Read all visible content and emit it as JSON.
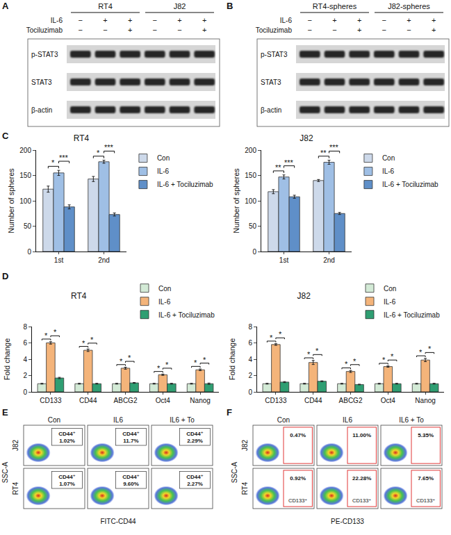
{
  "panel_labels": [
    "A",
    "B",
    "C",
    "D",
    "E",
    "F"
  ],
  "blots": [
    {
      "groups": [
        "RT4",
        "J82"
      ],
      "treatments": [
        {
          "name": "IL-6",
          "signs": [
            "−",
            "+",
            "+",
            "−",
            "+",
            "+"
          ]
        },
        {
          "name": "Tociluzimab",
          "signs": [
            "−",
            "−",
            "+",
            "−",
            "−",
            "+"
          ]
        }
      ],
      "bands": [
        "p-STAT3",
        "STAT3",
        "β-actin"
      ]
    },
    {
      "groups": [
        "RT4-spheres",
        "J82-spheres"
      ],
      "treatments": [
        {
          "name": "IL-6",
          "signs": [
            "−",
            "+",
            "+",
            "−",
            "+",
            "+"
          ]
        },
        {
          "name": "Tociluzimab",
          "signs": [
            "−",
            "−",
            "+",
            "−",
            "−",
            "+"
          ]
        }
      ],
      "bands": [
        "p-STAT3",
        "STAT3",
        "β-actin"
      ]
    }
  ],
  "chart_data": [
    {
      "type": "bar",
      "title": "RT4",
      "y_label": "Number of spheres",
      "categories": [
        "1st",
        "2nd"
      ],
      "ylim": [
        0,
        200
      ],
      "yticks": [
        0,
        50,
        100,
        150,
        200
      ],
      "grid": false,
      "legend": "right",
      "series": [
        {
          "name": "Con",
          "color": "#cdd9ea",
          "values": [
            123,
            143
          ],
          "errors": [
            6,
            5
          ]
        },
        {
          "name": "IL-6",
          "color": "#9fbfe5",
          "values": [
            155,
            177
          ],
          "errors": [
            5,
            3
          ]
        },
        {
          "name": "IL-6 + Tociluzimab",
          "color": "#5f8fc8",
          "values": [
            88,
            73
          ],
          "errors": [
            4,
            3
          ]
        }
      ],
      "annotations": [
        {
          "category": "1st",
          "between": [
            "Con",
            "IL-6"
          ],
          "text": "*"
        },
        {
          "category": "1st",
          "between": [
            "IL-6",
            "IL-6 + Tociluzimab"
          ],
          "text": "***"
        },
        {
          "category": "2nd",
          "between": [
            "Con",
            "IL-6"
          ],
          "text": "*"
        },
        {
          "category": "2nd",
          "between": [
            "IL-6",
            "IL-6 + Tociluzimab"
          ],
          "text": "***"
        }
      ]
    },
    {
      "type": "bar",
      "title": "J82",
      "y_label": "Number of spheres",
      "categories": [
        "1st",
        "2nd"
      ],
      "ylim": [
        0,
        200
      ],
      "yticks": [
        0,
        50,
        100,
        150,
        200
      ],
      "grid": false,
      "legend": "right",
      "series": [
        {
          "name": "Con",
          "color": "#cdd9ea",
          "values": [
            118,
            140
          ],
          "errors": [
            4,
            2
          ]
        },
        {
          "name": "IL-6",
          "color": "#9fbfe5",
          "values": [
            147,
            176
          ],
          "errors": [
            4,
            4
          ]
        },
        {
          "name": "IL-6 + Tociluzimab",
          "color": "#5f8fc8",
          "values": [
            108,
            75
          ],
          "errors": [
            3,
            2
          ]
        }
      ],
      "annotations": [
        {
          "category": "1st",
          "between": [
            "Con",
            "IL-6"
          ],
          "text": "**"
        },
        {
          "category": "1st",
          "between": [
            "IL-6",
            "IL-6 + Tociluzimab"
          ],
          "text": "***"
        },
        {
          "category": "2nd",
          "between": [
            "Con",
            "IL-6"
          ],
          "text": "**"
        },
        {
          "category": "2nd",
          "between": [
            "IL-6",
            "IL-6 + Tociluzimab"
          ],
          "text": "***"
        }
      ]
    },
    {
      "type": "bar",
      "title": "RT4",
      "y_label": "Fold change",
      "categories": [
        "CD133",
        "CD44",
        "ABCG2",
        "Oct4",
        "Nanog"
      ],
      "ylim": [
        0,
        8
      ],
      "yticks": [
        0,
        2,
        4,
        6,
        8
      ],
      "grid": false,
      "legend": "top right",
      "series": [
        {
          "name": "Con",
          "color": "#d3ead6",
          "values": [
            1.0,
            1.0,
            1.0,
            1.0,
            1.0
          ],
          "errors": [
            0.05,
            0.05,
            0.05,
            0.05,
            0.05
          ]
        },
        {
          "name": "IL-6",
          "color": "#f4b47a",
          "values": [
            6.0,
            5.1,
            2.9,
            2.1,
            2.7
          ],
          "errors": [
            0.15,
            0.15,
            0.12,
            0.08,
            0.1
          ]
        },
        {
          "name": "IL-6 + Tociluzimab",
          "color": "#2f9e72",
          "values": [
            1.7,
            1.0,
            1.1,
            1.0,
            1.0
          ],
          "errors": [
            0.08,
            0.05,
            0.05,
            0.05,
            0.08
          ]
        }
      ],
      "annotations": [
        {
          "category": "CD133",
          "between": [
            "Con",
            "IL-6"
          ],
          "text": "*"
        },
        {
          "category": "CD133",
          "between": [
            "IL-6",
            "IL-6 + Tociluzimab"
          ],
          "text": "*"
        },
        {
          "category": "CD44",
          "between": [
            "Con",
            "IL-6"
          ],
          "text": "*"
        },
        {
          "category": "CD44",
          "between": [
            "IL-6",
            "IL-6 + Tociluzimab"
          ],
          "text": "*"
        },
        {
          "category": "ABCG2",
          "between": [
            "Con",
            "IL-6"
          ],
          "text": "*"
        },
        {
          "category": "ABCG2",
          "between": [
            "IL-6",
            "IL-6 + Tociluzimab"
          ],
          "text": "*"
        },
        {
          "category": "Oct4",
          "between": [
            "Con",
            "IL-6"
          ],
          "text": "*"
        },
        {
          "category": "Oct4",
          "between": [
            "IL-6",
            "IL-6 + Tociluzimab"
          ],
          "text": "*"
        },
        {
          "category": "Nanog",
          "between": [
            "Con",
            "IL-6"
          ],
          "text": "*"
        },
        {
          "category": "Nanog",
          "between": [
            "IL-6",
            "IL-6 + Tociluzimab"
          ],
          "text": "*"
        }
      ]
    },
    {
      "type": "bar",
      "title": "J82",
      "y_label": "Fold change",
      "categories": [
        "CD133",
        "CD44",
        "ABCG2",
        "Oct4",
        "Nanog"
      ],
      "ylim": [
        0,
        8
      ],
      "yticks": [
        0,
        2,
        4,
        6,
        8
      ],
      "grid": false,
      "legend": "top right",
      "series": [
        {
          "name": "Con",
          "color": "#d3ead6",
          "values": [
            1.0,
            1.0,
            1.0,
            1.0,
            1.0
          ],
          "errors": [
            0.05,
            0.05,
            0.05,
            0.05,
            0.05
          ]
        },
        {
          "name": "IL-6",
          "color": "#f4b47a",
          "values": [
            5.8,
            3.6,
            2.5,
            3.1,
            3.9
          ],
          "errors": [
            0.1,
            0.25,
            0.12,
            0.08,
            0.2
          ]
        },
        {
          "name": "IL-6 + Tociluzimab",
          "color": "#2f9e72",
          "values": [
            1.2,
            1.3,
            0.9,
            1.0,
            1.0
          ],
          "errors": [
            0.06,
            0.05,
            0.04,
            0.05,
            0.05
          ]
        }
      ],
      "annotations": [
        {
          "category": "CD133",
          "between": [
            "Con",
            "IL-6"
          ],
          "text": "*"
        },
        {
          "category": "CD133",
          "between": [
            "IL-6",
            "IL-6 + Tociluzimab"
          ],
          "text": "*"
        },
        {
          "category": "CD44",
          "between": [
            "Con",
            "IL-6"
          ],
          "text": "*"
        },
        {
          "category": "CD44",
          "between": [
            "IL-6",
            "IL-6 + Tociluzimab"
          ],
          "text": "*"
        },
        {
          "category": "ABCG2",
          "between": [
            "Con",
            "IL-6"
          ],
          "text": "*"
        },
        {
          "category": "ABCG2",
          "between": [
            "IL-6",
            "IL-6 + Tociluzimab"
          ],
          "text": "*"
        },
        {
          "category": "Oct4",
          "between": [
            "Con",
            "IL-6"
          ],
          "text": "*"
        },
        {
          "category": "Oct4",
          "between": [
            "IL-6",
            "IL-6 + Tociluzimab"
          ],
          "text": "*"
        },
        {
          "category": "Nanog",
          "between": [
            "Con",
            "IL-6"
          ],
          "text": "*"
        },
        {
          "category": "Nanog",
          "between": [
            "IL-6",
            "IL-6 + Tociluzimab"
          ],
          "text": "*"
        }
      ]
    }
  ],
  "flow": [
    {
      "x_label": "FITC-CD44",
      "y_label": "SSC-A",
      "columns": [
        "Con",
        "IL6",
        "IL6 + To"
      ],
      "rows": [
        {
          "name": "J82",
          "gates": [
            {
              "label": "CD44⁺",
              "value": "1.02%"
            },
            {
              "label": "CD44⁺",
              "value": "11.7%"
            },
            {
              "label": "CD44⁺",
              "value": "2.29%"
            }
          ]
        },
        {
          "name": "RT4",
          "gates": [
            {
              "label": "CD44⁺",
              "value": "1.07%"
            },
            {
              "label": "CD44⁺",
              "value": "9.60%"
            },
            {
              "label": "CD44⁺",
              "value": "2.27%"
            }
          ]
        }
      ]
    },
    {
      "x_label": "PE-CD133",
      "y_label": "SSC-A",
      "columns": [
        "Con",
        "IL6",
        "IL6 + To"
      ],
      "rows": [
        {
          "name": "J82",
          "gates": [
            {
              "value": "0.47%"
            },
            {
              "value": "11.00%"
            },
            {
              "value": "5.35%"
            }
          ]
        },
        {
          "name": "RT4",
          "gates": [
            {
              "label": "CD133⁺",
              "value": "0.92%"
            },
            {
              "label": "CD133⁺",
              "value": "22.28%"
            },
            {
              "label": "CD133⁺",
              "value": "7.65%"
            }
          ]
        }
      ]
    }
  ]
}
